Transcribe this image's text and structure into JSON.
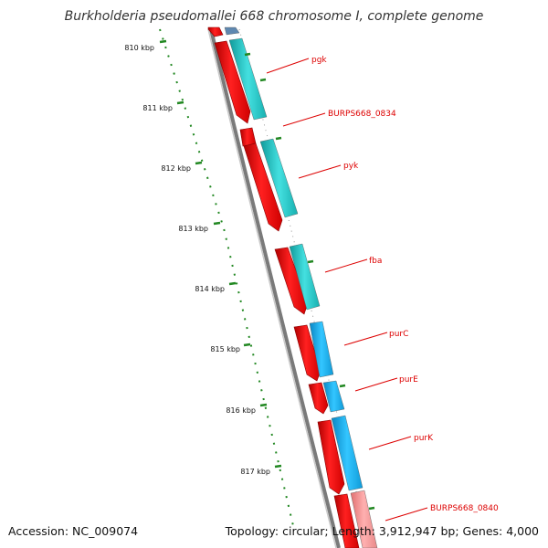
{
  "title": "Burkholderia pseudomallei 668 chromosome I, complete genome",
  "footer": {
    "accession": "Accession: NC_009074",
    "stats": "Topology: circular; Length: 3,912,947 bp; Genes: 4,000"
  },
  "colors": {
    "forward_cds": "#ff0000",
    "orf_teal": "#22cccc",
    "orf_blue": "#1ab0f0",
    "orf_pink": "#f09090",
    "backbone": "#777777",
    "ruler": "#228822",
    "gene_label": "#dd0000"
  },
  "ruler_labels": [
    "810 kbp",
    "811 kbp",
    "812 kbp",
    "813 kbp",
    "814 kbp",
    "815 kbp",
    "816 kbp",
    "817 kbp"
  ],
  "gene_labels": [
    "pgk",
    "BURPS668_0834",
    "pyk",
    "fba",
    "purC",
    "purE",
    "purK",
    "BURPS668_0840"
  ]
}
